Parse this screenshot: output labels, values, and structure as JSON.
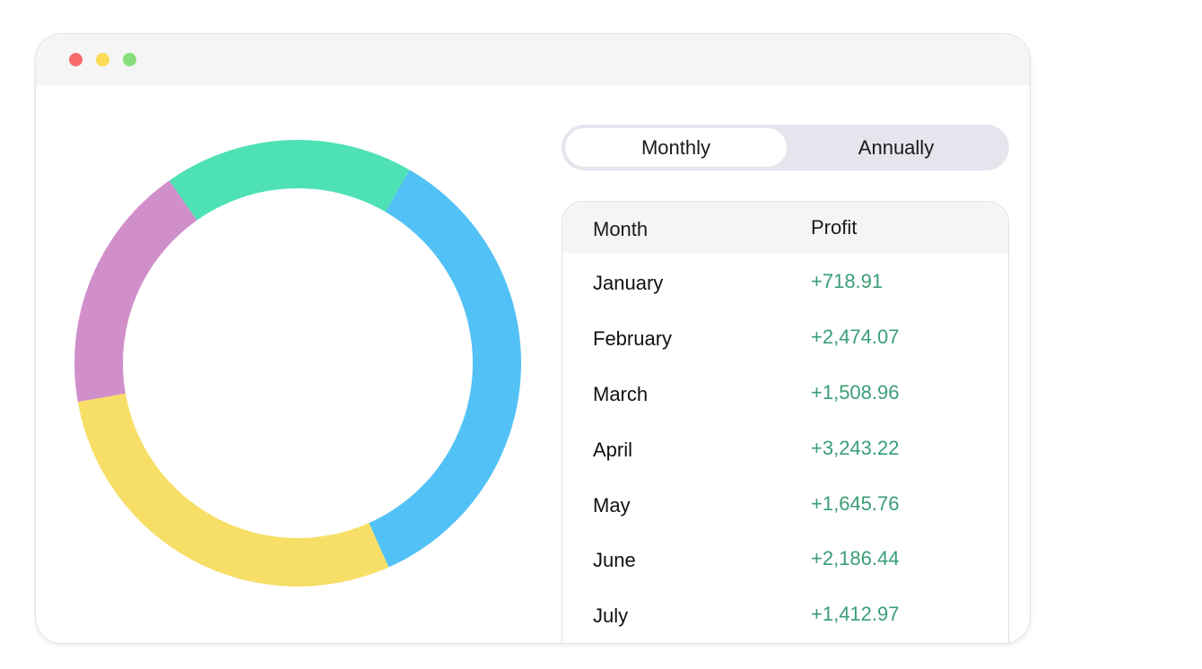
{
  "window": {
    "traffic_lights": [
      "close",
      "minimize",
      "maximize"
    ]
  },
  "toggle": {
    "monthly_label": "Monthly",
    "annually_label": "Annually",
    "selected": "Monthly"
  },
  "table": {
    "headers": {
      "month": "Month",
      "profit": "Profit"
    },
    "rows": [
      {
        "month": "January",
        "profit": "+718.91"
      },
      {
        "month": "February",
        "profit": "+2,474.07"
      },
      {
        "month": "March",
        "profit": "+1,508.96"
      },
      {
        "month": "April",
        "profit": "+3,243.22"
      },
      {
        "month": "May",
        "profit": "+1,645.76"
      },
      {
        "month": "June",
        "profit": "+2,186.44"
      },
      {
        "month": "July",
        "profit": "+1,412.97"
      }
    ]
  },
  "chart_data": {
    "type": "pie",
    "style": "donut",
    "slices": [
      {
        "value": 35.0,
        "color": "#52c1f5"
      },
      {
        "value": 28.9,
        "color": "#f7df67"
      },
      {
        "value": 18.0,
        "color": "#d18fca"
      },
      {
        "value": 18.1,
        "color": "#4ee1b5"
      }
    ]
  }
}
